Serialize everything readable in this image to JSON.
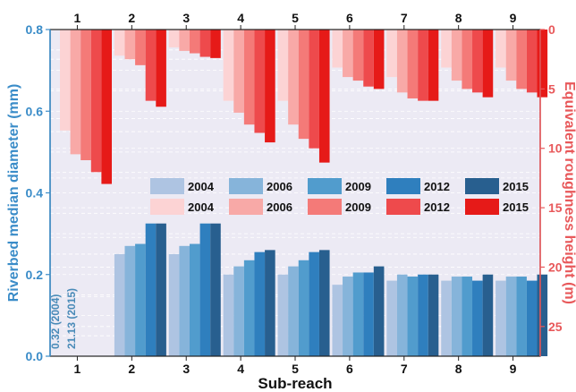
{
  "chart_data": {
    "type": "bar",
    "xlabel": "Sub-reach",
    "categories": [
      "1",
      "2",
      "3",
      "4",
      "5",
      "6",
      "7",
      "8",
      "9"
    ],
    "years": [
      "2004",
      "2006",
      "2009",
      "2012",
      "2015"
    ],
    "left_axis": {
      "label": "Riverbed median diameter (mm)",
      "range": [
        0.0,
        0.8
      ],
      "ticks": [
        "0.0",
        "0.2",
        "0.4",
        "0.6",
        "0.8"
      ],
      "color": "#3a8cc8"
    },
    "right_axis": {
      "label": "Equivalent roughness height (m)",
      "range": [
        0,
        27.5
      ],
      "inverted": true,
      "ticks": [
        "0",
        "5",
        "10",
        "15",
        "20",
        "25"
      ],
      "color": "#e8585a"
    },
    "diameter_series": [
      {
        "name": "2004",
        "color": "#aec4e2",
        "values": [
          null,
          0.25,
          0.25,
          0.2,
          0.2,
          0.175,
          0.185,
          0.185,
          0.185
        ]
      },
      {
        "name": "2006",
        "color": "#86b4da",
        "values": [
          null,
          0.27,
          0.27,
          0.22,
          0.22,
          0.195,
          0.2,
          0.195,
          0.195
        ]
      },
      {
        "name": "2009",
        "color": "#519ccd",
        "values": [
          null,
          0.275,
          0.275,
          0.235,
          0.235,
          0.205,
          0.195,
          0.195,
          0.195
        ]
      },
      {
        "name": "2012",
        "color": "#2f7fbe",
        "values": [
          null,
          0.325,
          0.325,
          0.255,
          0.255,
          0.205,
          0.2,
          0.185,
          0.185
        ]
      },
      {
        "name": "2015",
        "color": "#285f8f",
        "values": [
          null,
          0.325,
          0.325,
          0.26,
          0.26,
          0.22,
          0.2,
          0.2,
          0.2
        ]
      }
    ],
    "roughness_series": [
      {
        "name": "2004",
        "color": "#fcd3d4",
        "values": [
          8.5,
          2.2,
          1.5,
          6.0,
          6.0,
          3.2,
          4.0,
          3.2,
          3.2
        ]
      },
      {
        "name": "2006",
        "color": "#f8a9a7",
        "values": [
          10.5,
          2.5,
          1.8,
          7.0,
          8.0,
          4.0,
          5.3,
          4.3,
          4.3
        ]
      },
      {
        "name": "2009",
        "color": "#f47a78",
        "values": [
          11.0,
          3.0,
          2.0,
          8.0,
          9.2,
          4.3,
          5.8,
          5.0,
          5.0
        ]
      },
      {
        "name": "2012",
        "color": "#ee4a4c",
        "values": [
          12.0,
          6.0,
          2.3,
          8.7,
          10.0,
          4.8,
          6.0,
          5.3,
          5.3
        ]
      },
      {
        "name": "2015",
        "color": "#e61a18",
        "values": [
          13.0,
          6.5,
          2.4,
          9.5,
          11.2,
          5.0,
          6.0,
          5.7,
          5.7
        ]
      }
    ],
    "annotations": [
      "0.32 (2004)",
      "21.13 (2015)"
    ],
    "grid": true,
    "legend_position": "center-right"
  }
}
